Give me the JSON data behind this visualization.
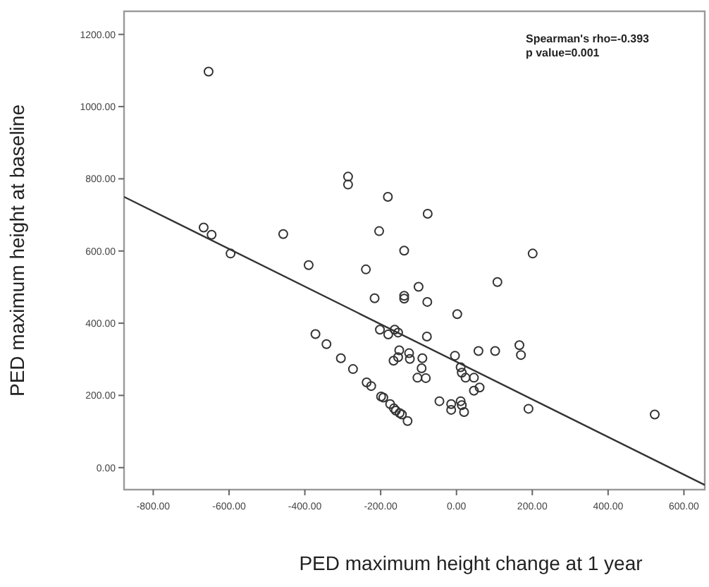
{
  "chart_data": {
    "type": "scatter",
    "xlabel": "PED maximum height change at 1 year",
    "ylabel": "PED maximum height at baseline",
    "annotations": [
      "Spearman's rho=-0.393\np value=0.001"
    ],
    "xlim": [
      -877,
      655
    ],
    "ylim": [
      -61,
      1264
    ],
    "xticks": [
      {
        "value": -800,
        "label": "-800.00"
      },
      {
        "value": -600,
        "label": "-600.00"
      },
      {
        "value": -400,
        "label": "-400.00"
      },
      {
        "value": -200,
        "label": "-200.00"
      },
      {
        "value": 0,
        "label": "0.00"
      },
      {
        "value": 200,
        "label": "200.00"
      },
      {
        "value": 400,
        "label": "400.00"
      },
      {
        "value": 600,
        "label": "600.00"
      }
    ],
    "yticks": [
      {
        "value": 0,
        "label": "0.00"
      },
      {
        "value": 200,
        "label": "200.00"
      },
      {
        "value": 400,
        "label": "400.00"
      },
      {
        "value": 600,
        "label": "600.00"
      },
      {
        "value": 800,
        "label": "800.00"
      },
      {
        "value": 1000,
        "label": "1000.00"
      },
      {
        "value": 1200,
        "label": "1200.00"
      }
    ],
    "grid": false,
    "marker": "circle",
    "series": [
      {
        "color": "#333333",
        "x": [
          -654,
          -286,
          -286,
          -181,
          -76,
          -667,
          -646,
          -596,
          -457,
          -204,
          -138,
          201,
          -390,
          -239,
          108,
          -100,
          -216,
          -138,
          -138,
          -77,
          2,
          -372,
          -343,
          -305,
          -273,
          -237,
          -225,
          -202,
          -180,
          -163,
          -154,
          -78,
          -151,
          -166,
          -154,
          -125,
          -123,
          -90,
          -92,
          -103,
          -81,
          -4,
          11,
          14,
          24,
          58,
          102,
          166,
          170,
          46,
          46,
          61,
          -45,
          -14,
          -14,
          11,
          14,
          20,
          190,
          523,
          -199,
          -193,
          -175,
          -165,
          -160,
          -150,
          -144,
          -129
        ],
        "values": [
          1097,
          806,
          784,
          750,
          703,
          665,
          645,
          593,
          647,
          655,
          601,
          593,
          561,
          549,
          514,
          501,
          469,
          476,
          468,
          459,
          425,
          370,
          342,
          303,
          273,
          236,
          226,
          382,
          369,
          382,
          374,
          363,
          325,
          296,
          306,
          317,
          301,
          303,
          275,
          249,
          248,
          310,
          278,
          263,
          249,
          323,
          323,
          339,
          312,
          249,
          213,
          222,
          184,
          176,
          160,
          184,
          173,
          154,
          163,
          147,
          197,
          194,
          176,
          164,
          158,
          151,
          147,
          129
        ]
      },
      {
        "type": "line",
        "color": "#333333",
        "marker": "none",
        "line_style": "solid",
        "x": [
          -877,
          655
        ],
        "values": [
          750,
          -48
        ]
      }
    ]
  }
}
